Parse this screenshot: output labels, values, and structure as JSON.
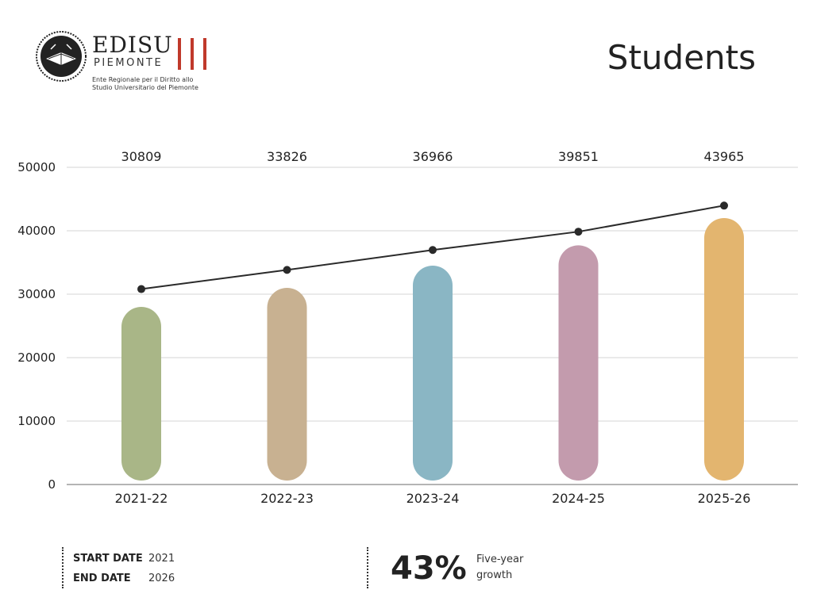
{
  "logo": {
    "brand": "EDISU",
    "sub": "PIEMONTE",
    "desc_line1": "Ente Regionale per il Diritto allo",
    "desc_line2": "Studio Universitario del Piemonte"
  },
  "page_title": "Students",
  "chart_data": {
    "type": "bar",
    "categories": [
      "2021-22",
      "2022-23",
      "2023-24",
      "2024-25",
      "2025-26"
    ],
    "top_labels": [
      "30809",
      "33826",
      "36966",
      "39851",
      "43965"
    ],
    "line_values": [
      30809,
      33826,
      36966,
      39851,
      43965
    ],
    "bar_values": [
      28000,
      31000,
      34500,
      37700,
      42000
    ],
    "bar_colors": [
      "#a9b687",
      "#c8b191",
      "#8ab6c4",
      "#c39bad",
      "#e3b56f"
    ],
    "yticks": [
      0,
      10000,
      20000,
      30000,
      40000,
      50000
    ],
    "ylim": [
      0,
      50000
    ],
    "grid": true
  },
  "footer": {
    "start_key": "START DATE",
    "start_val": "2021",
    "end_key": "END DATE",
    "end_val": "2026",
    "growth_pct": "43%",
    "growth_label_line1": "Five-year",
    "growth_label_line2": "growth"
  }
}
